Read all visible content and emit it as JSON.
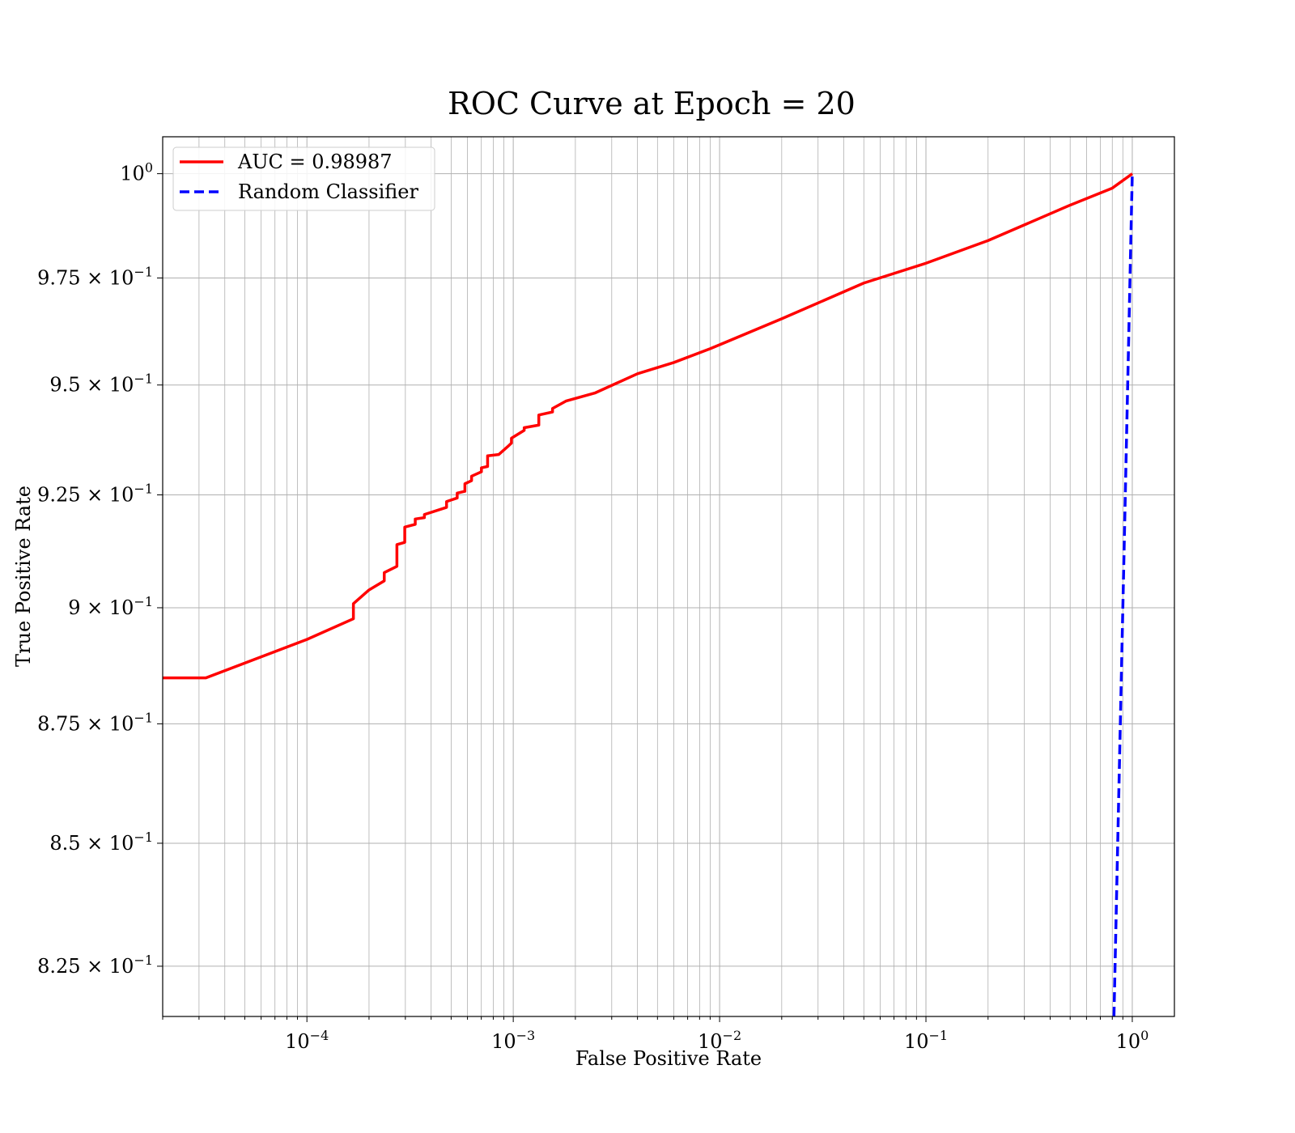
{
  "chart_data": {
    "type": "line",
    "title": "ROC Curve at Epoch = 20",
    "xlabel": "False Positive Rate",
    "ylabel": "True Positive Rate",
    "xscale": "log",
    "yscale": "log",
    "xlim": [
      2e-05,
      1.6
    ],
    "ylim": [
      0.815,
      1.009
    ],
    "grid": true,
    "legend_position": "top-left",
    "x_ticks": [
      {
        "value": 0.0001,
        "base": "10",
        "exp": "−4"
      },
      {
        "value": 0.001,
        "base": "10",
        "exp": "−3"
      },
      {
        "value": 0.01,
        "base": "10",
        "exp": "−2"
      },
      {
        "value": 0.1,
        "base": "10",
        "exp": "−1"
      },
      {
        "value": 1,
        "base": "10",
        "exp": "0"
      }
    ],
    "y_ticks": [
      {
        "value": 1.0,
        "base": "10",
        "exp": "0"
      },
      {
        "value": 0.975,
        "base": "9.75 × 10",
        "exp": "−1"
      },
      {
        "value": 0.95,
        "base": "9.5 × 10",
        "exp": "−1"
      },
      {
        "value": 0.925,
        "base": "9.25 × 10",
        "exp": "−1"
      },
      {
        "value": 0.9,
        "base": "9 × 10",
        "exp": "−1"
      },
      {
        "value": 0.875,
        "base": "8.75 × 10",
        "exp": "−1"
      },
      {
        "value": 0.85,
        "base": "8.5 × 10",
        "exp": "−1"
      },
      {
        "value": 0.825,
        "base": "8.25 × 10",
        "exp": "−1"
      }
    ],
    "series": [
      {
        "name": "AUC = 0.98987",
        "color": "#ff0000",
        "style": "solid",
        "points": [
          [
            2e-05,
            0.8848
          ],
          [
            3.23e-05,
            0.8848
          ],
          [
            0.0001,
            0.8931
          ],
          [
            0.000168,
            0.8976
          ],
          [
            0.000168,
            0.9009
          ],
          [
            0.0002,
            0.9039
          ],
          [
            0.000237,
            0.9059
          ],
          [
            0.000237,
            0.9077
          ],
          [
            0.000273,
            0.9091
          ],
          [
            0.000273,
            0.9139
          ],
          [
            0.000298,
            0.9144
          ],
          [
            0.000298,
            0.9178
          ],
          [
            0.000335,
            0.9184
          ],
          [
            0.000335,
            0.9196
          ],
          [
            0.000371,
            0.9199
          ],
          [
            0.000371,
            0.9206
          ],
          [
            0.000475,
            0.9222
          ],
          [
            0.000475,
            0.9235
          ],
          [
            0.000535,
            0.9243
          ],
          [
            0.000535,
            0.9254
          ],
          [
            0.000583,
            0.9258
          ],
          [
            0.000583,
            0.9275
          ],
          [
            0.000628,
            0.9282
          ],
          [
            0.000628,
            0.9292
          ],
          [
            0.000701,
            0.9302
          ],
          [
            0.000701,
            0.9311
          ],
          [
            0.000751,
            0.9314
          ],
          [
            0.000751,
            0.9338
          ],
          [
            0.00085,
            0.9341
          ],
          [
            0.00094,
            0.9359
          ],
          [
            0.00098,
            0.9367
          ],
          [
            0.00098,
            0.9378
          ],
          [
            0.00113,
            0.9396
          ],
          [
            0.00113,
            0.9402
          ],
          [
            0.00133,
            0.9408
          ],
          [
            0.00133,
            0.9431
          ],
          [
            0.00155,
            0.9438
          ],
          [
            0.00155,
            0.9446
          ],
          [
            0.0018,
            0.9463
          ],
          [
            0.0025,
            0.9482
          ],
          [
            0.004,
            0.9526
          ],
          [
            0.006,
            0.9552
          ],
          [
            0.009,
            0.9584
          ],
          [
            0.02,
            0.9654
          ],
          [
            0.05,
            0.9738
          ],
          [
            0.1,
            0.9785
          ],
          [
            0.2,
            0.9839
          ],
          [
            0.5,
            0.9924
          ],
          [
            0.8,
            0.9965
          ],
          [
            1.0,
            1.0
          ]
        ]
      },
      {
        "name": "Random Classifier",
        "color": "#0000ff",
        "style": "dashed",
        "points": [
          [
            0.815,
            0.815
          ],
          [
            1.0,
            1.0
          ]
        ]
      }
    ]
  }
}
